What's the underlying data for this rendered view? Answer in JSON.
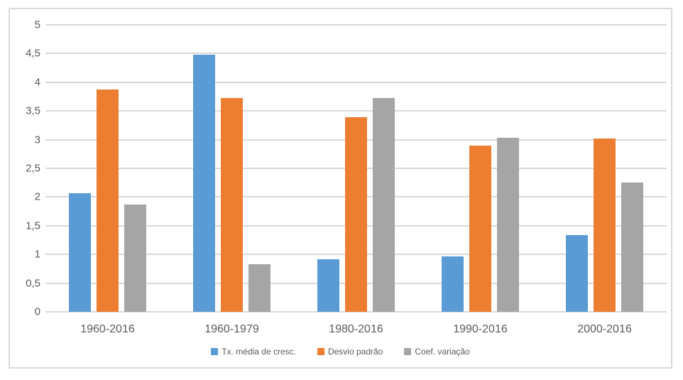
{
  "frame": {
    "background": "#FFFFFF",
    "border_color": "#D9D9D9"
  },
  "chart_data": {
    "type": "bar",
    "title": "",
    "xlabel": "",
    "ylabel": "",
    "categories": [
      "1960-2016",
      "1960-1979",
      "1980-2016",
      "1990-2016",
      "2000-2016"
    ],
    "series": [
      {
        "name": "Tx. média de cresc.",
        "color": "#5B9BD5",
        "values": [
          2.07,
          4.48,
          0.91,
          0.96,
          1.34
        ]
      },
      {
        "name": "Desvio padrão",
        "color": "#ED7D31",
        "values": [
          3.87,
          3.73,
          3.39,
          2.9,
          3.02
        ]
      },
      {
        "name": "Coef. variação",
        "color": "#A5A5A5",
        "values": [
          1.87,
          0.83,
          3.72,
          3.03,
          2.25
        ]
      }
    ],
    "ylim": [
      0,
      5
    ],
    "ytick_step": 0.5,
    "ytick_labels": [
      "0",
      "0,5",
      "1",
      "1,5",
      "2",
      "2,5",
      "3",
      "3,5",
      "4",
      "4,5",
      "5"
    ],
    "decimal_separator": ",",
    "grid": true,
    "gridline_color": "#D9D9D9",
    "axis_line_color": "#D9D9D9",
    "axis_text_color": "#595959",
    "legend_position": "bottom"
  }
}
